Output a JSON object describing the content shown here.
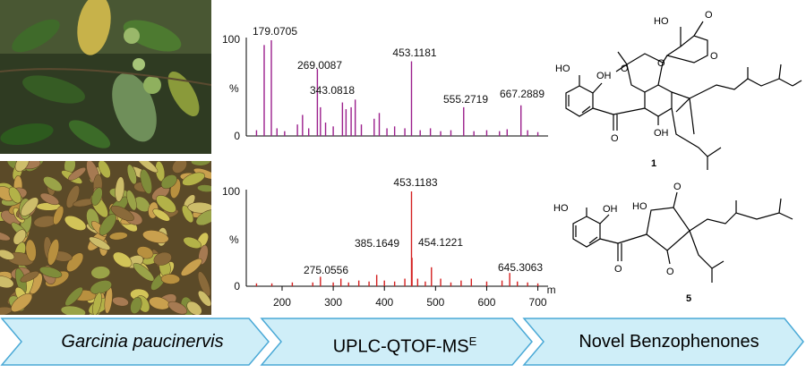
{
  "spectra": {
    "top": {
      "y_axis_label": "%",
      "y_ticks": [
        "100",
        "0"
      ],
      "peak_labels": [
        "179.0705",
        "269.0087",
        "343.0818",
        "453.1181",
        "555.2719",
        "667.2889"
      ],
      "color": "#9b1f8c"
    },
    "bottom": {
      "y_axis_label": "%",
      "y_ticks": [
        "100",
        "0"
      ],
      "peak_labels": [
        "453.1183",
        "454.1221",
        "275.0556",
        "385.1649",
        "645.3063"
      ],
      "color": "#d42020"
    },
    "x_axis_label": "m/z",
    "x_ticks": [
      "200",
      "300",
      "400",
      "500",
      "600",
      "700"
    ]
  },
  "structures": {
    "compound_1_label": "1",
    "compound_5_label": "5",
    "atom_OH": "OH",
    "atom_HO": "HO",
    "atom_O": "O"
  },
  "workflow": {
    "step1": "Garcinia paucinervis",
    "step2": "UPLC-QTOF-MS",
    "step2_sup": "E",
    "step3": "Novel Benzophenones",
    "fill_color": "#cfeef8",
    "stroke_color": "#4aa9d6"
  }
}
